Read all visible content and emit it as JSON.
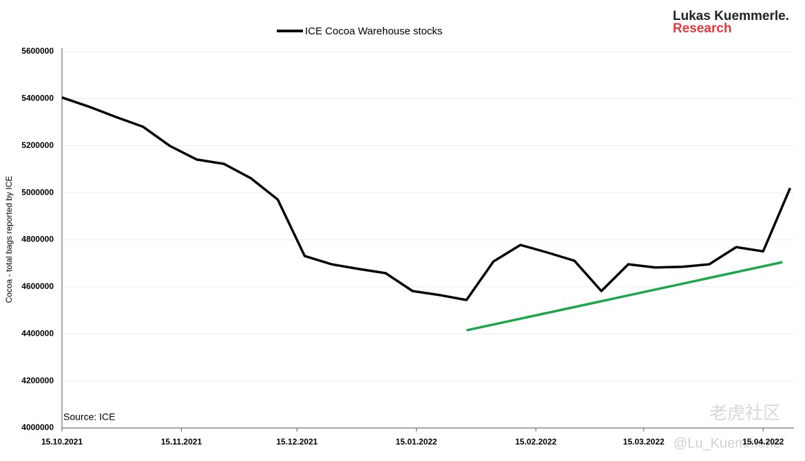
{
  "chart_data": {
    "type": "line",
    "y_label": "Cocoa - total bags reported by ICE",
    "source": "Source: ICE",
    "brand": {
      "line1": "Lukas Kuemmerle.",
      "line2": "Research"
    },
    "watermark": {
      "site": "老虎社区",
      "user": "@Lu_Kuemmerle"
    },
    "x": [
      "15.10.2021",
      "22.10.2021",
      "29.10.2021",
      "05.11.2021",
      "12.11.2021",
      "19.11.2021",
      "26.11.2021",
      "03.12.2021",
      "10.12.2021",
      "17.12.2021",
      "24.12.2021",
      "31.12.2021",
      "07.01.2022",
      "14.01.2022",
      "21.01.2022",
      "28.01.2022",
      "04.02.2022",
      "11.02.2022",
      "18.02.2022",
      "25.02.2022",
      "04.03.2022",
      "11.03.2022",
      "18.03.2022",
      "25.03.2022",
      "01.04.2022",
      "08.04.2022",
      "15.04.2022",
      "22.04.2022"
    ],
    "series": [
      {
        "name": "ICE Cocoa Warehouse stocks",
        "color": "#000000",
        "values": [
          5405000,
          5366000,
          5322000,
          5281000,
          5199000,
          5141000,
          5123000,
          5062000,
          4971000,
          4731000,
          4696000,
          4676000,
          4658000,
          4582000,
          4565000,
          4544000,
          4708000,
          4778000,
          4746000,
          4711000,
          4582000,
          4696000,
          4682000,
          4685000,
          4696000,
          4769000,
          4751000,
          5020000
        ]
      }
    ],
    "trendline": {
      "x": [
        "28.01.2022",
        "20.04.2022"
      ],
      "values": [
        4415000,
        4705000
      ],
      "color": "#1aa64a"
    },
    "xlim": [
      "15.10.2021",
      "23.04.2022"
    ],
    "xticks": [
      "15.10.2021",
      "15.11.2021",
      "15.12.2021",
      "15.01.2022",
      "15.02.2022",
      "15.03.2022",
      "15.04.2022"
    ],
    "ylim": [
      4000000,
      5600000
    ],
    "yticks": [
      4000000,
      4200000,
      4400000,
      4600000,
      4800000,
      5000000,
      5200000,
      5400000,
      5600000
    ],
    "grid": true
  }
}
